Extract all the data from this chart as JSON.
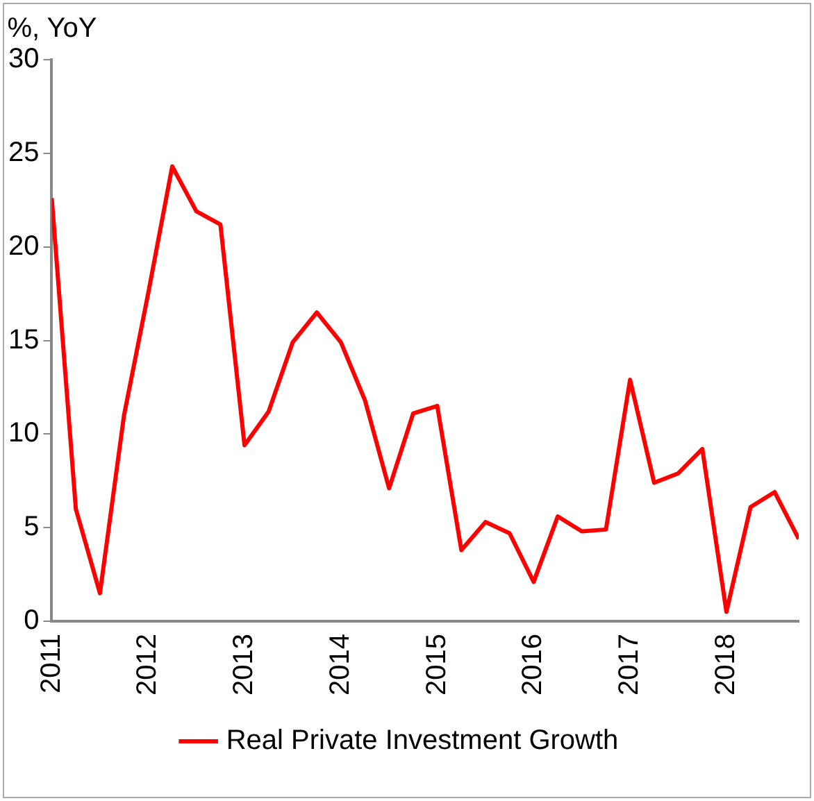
{
  "chart_data": {
    "type": "line",
    "ylabel": "%, YoY",
    "x": [
      2011,
      2011.25,
      2011.5,
      2011.75,
      2012,
      2012.25,
      2012.5,
      2012.75,
      2013,
      2013.25,
      2013.5,
      2013.75,
      2014,
      2014.25,
      2014.5,
      2014.75,
      2015,
      2015.25,
      2015.5,
      2015.75,
      2016,
      2016.25,
      2016.5,
      2016.75,
      2017,
      2017.25,
      2017.5,
      2017.75,
      2018,
      2018.25,
      2018.5,
      2018.75
    ],
    "series": [
      {
        "name": "Real Private Investment Growth",
        "color": "#ff0000",
        "values": [
          22.6,
          6.0,
          1.5,
          11.0,
          17.5,
          24.3,
          21.9,
          21.2,
          9.4,
          11.2,
          14.9,
          16.5,
          14.9,
          11.8,
          7.1,
          11.1,
          11.5,
          3.8,
          5.3,
          4.7,
          2.1,
          5.6,
          4.8,
          4.9,
          12.9,
          7.4,
          7.9,
          9.2,
          0.5,
          6.1,
          6.9,
          4.4
        ]
      }
    ],
    "xlim": [
      2011,
      2018.75
    ],
    "xticks": [
      2011,
      2012,
      2013,
      2014,
      2015,
      2016,
      2017,
      2018
    ],
    "ylim": [
      0,
      30
    ],
    "yticks": [
      0,
      5,
      10,
      15,
      20,
      25,
      30
    ],
    "grid": false,
    "legend": "bottom",
    "marker": "none",
    "line_style": "solid"
  }
}
